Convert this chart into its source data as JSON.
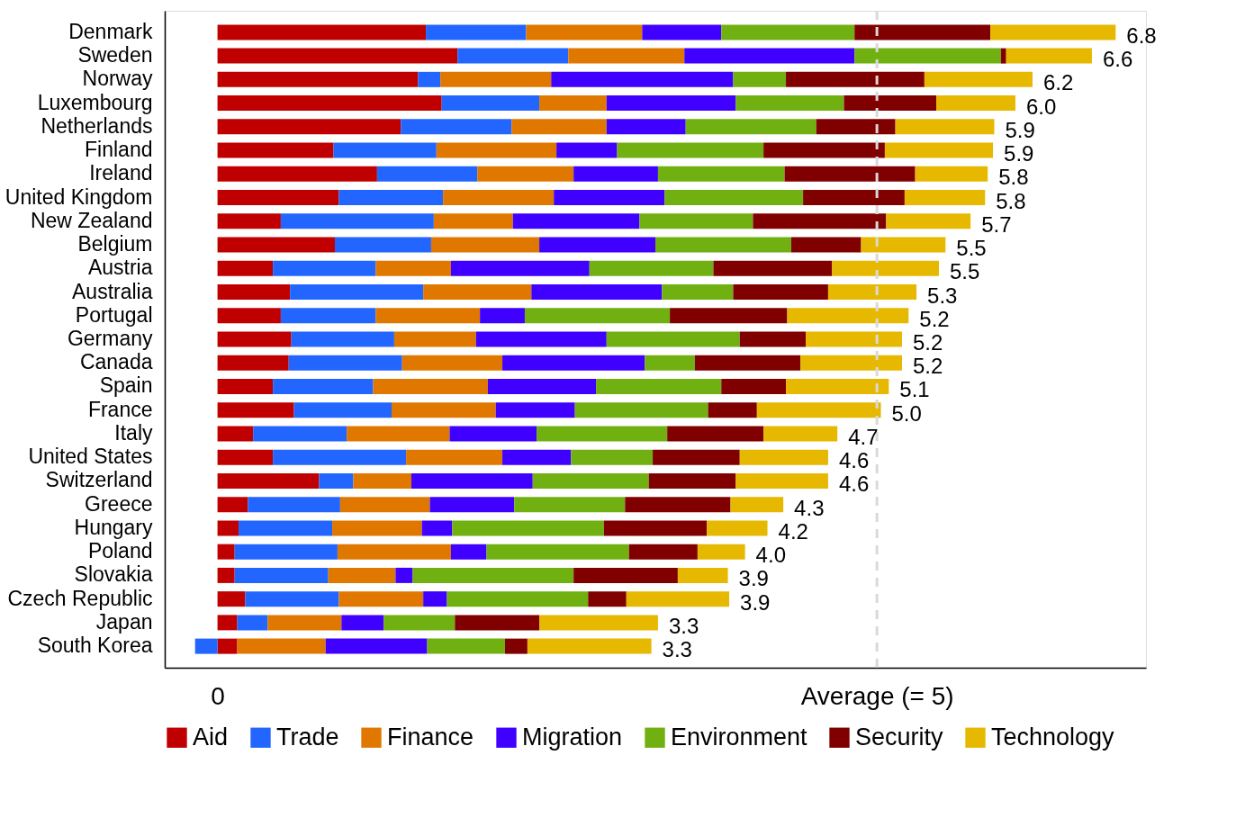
{
  "chart_data": {
    "type": "bar",
    "orientation": "horizontal",
    "stacked": true,
    "categories": [
      "Denmark",
      "Sweden",
      "Norway",
      "Luxembourg",
      "Netherlands",
      "Finland",
      "Ireland",
      "United Kingdom",
      "New Zealand",
      "Belgium",
      "Austria",
      "Australia",
      "Portugal",
      "Germany",
      "Canada",
      "Spain",
      "France",
      "Italy",
      "United States",
      "Switzerland",
      "Greece",
      "Hungary",
      "Poland",
      "Slovakia",
      "Czech Republic",
      "Japan",
      "South Korea"
    ],
    "series": [
      {
        "name": "Aid",
        "color": "#c00000",
        "values": [
          1.58,
          1.82,
          1.52,
          1.7,
          1.39,
          0.88,
          1.21,
          0.92,
          0.48,
          0.89,
          0.42,
          0.55,
          0.48,
          0.56,
          0.54,
          0.42,
          0.58,
          0.27,
          0.42,
          0.77,
          0.23,
          0.16,
          0.13,
          0.13,
          0.21,
          0.15,
          0.15
        ]
      },
      {
        "name": "Trade",
        "color": "#2266ff",
        "values": [
          0.76,
          0.84,
          0.17,
          0.74,
          0.84,
          0.78,
          0.76,
          0.79,
          1.16,
          0.73,
          0.78,
          1.01,
          0.72,
          0.78,
          0.86,
          0.76,
          0.74,
          0.71,
          1.01,
          0.26,
          0.7,
          0.71,
          0.78,
          0.71,
          0.71,
          0.23,
          -0.17
        ]
      },
      {
        "name": "Finance",
        "color": "#e07800",
        "values": [
          0.88,
          0.88,
          0.84,
          0.51,
          0.72,
          0.91,
          0.73,
          0.84,
          0.6,
          0.82,
          0.57,
          0.82,
          0.79,
          0.62,
          0.76,
          0.87,
          0.79,
          0.78,
          0.73,
          0.44,
          0.68,
          0.68,
          0.86,
          0.51,
          0.64,
          0.56,
          0.67
        ]
      },
      {
        "name": "Migration",
        "color": "#3f00ff",
        "values": [
          0.6,
          1.29,
          1.38,
          0.98,
          0.6,
          0.46,
          0.64,
          0.84,
          0.96,
          0.88,
          1.05,
          0.99,
          0.34,
          0.99,
          1.08,
          0.82,
          0.6,
          0.66,
          0.52,
          0.92,
          0.64,
          0.23,
          0.27,
          0.13,
          0.18,
          0.32,
          0.77
        ]
      },
      {
        "name": "Environment",
        "color": "#70b010",
        "values": [
          1.01,
          1.11,
          0.4,
          0.82,
          0.99,
          1.11,
          0.96,
          1.05,
          0.86,
          1.03,
          0.94,
          0.54,
          1.1,
          1.01,
          0.38,
          0.95,
          1.01,
          0.99,
          0.62,
          0.88,
          0.84,
          1.15,
          1.08,
          1.22,
          1.07,
          0.54,
          0.59
        ]
      },
      {
        "name": "Security",
        "color": "#800000",
        "values": [
          1.03,
          0.04,
          1.05,
          0.7,
          0.6,
          0.92,
          0.99,
          0.77,
          1.01,
          0.53,
          0.9,
          0.72,
          0.89,
          0.5,
          0.8,
          0.49,
          0.37,
          0.73,
          0.66,
          0.66,
          0.8,
          0.78,
          0.52,
          0.79,
          0.29,
          0.64,
          0.17
        ]
      },
      {
        "name": "Technology",
        "color": "#e6b800",
        "values": [
          0.95,
          0.65,
          0.82,
          0.6,
          0.75,
          0.82,
          0.55,
          0.61,
          0.64,
          0.64,
          0.81,
          0.67,
          0.92,
          0.73,
          0.77,
          0.78,
          0.94,
          0.56,
          0.67,
          0.7,
          0.4,
          0.46,
          0.36,
          0.38,
          0.78,
          0.9,
          0.94
        ]
      }
    ],
    "totals": [
      "6.8",
      "6.6",
      "6.2",
      "6.0",
      "5.9",
      "5.9",
      "5.8",
      "5.8",
      "5.7",
      "5.5",
      "5.5",
      "5.3",
      "5.2",
      "5.2",
      "5.2",
      "5.1",
      "5.0",
      "4.7",
      "4.6",
      "4.6",
      "4.3",
      "4.2",
      "4.0",
      "3.9",
      "3.9",
      "3.3",
      "3.3"
    ],
    "xlim": [
      -0.4,
      7.04
    ],
    "xticks": [
      0,
      {
        "value": 5,
        "label": "Average (= 5)"
      }
    ],
    "ref_lines": [
      {
        "axis": "x",
        "value": 5,
        "color": "#d9d9d9",
        "line_style": "dashed"
      }
    ],
    "legend": "bottom",
    "grid": false
  }
}
